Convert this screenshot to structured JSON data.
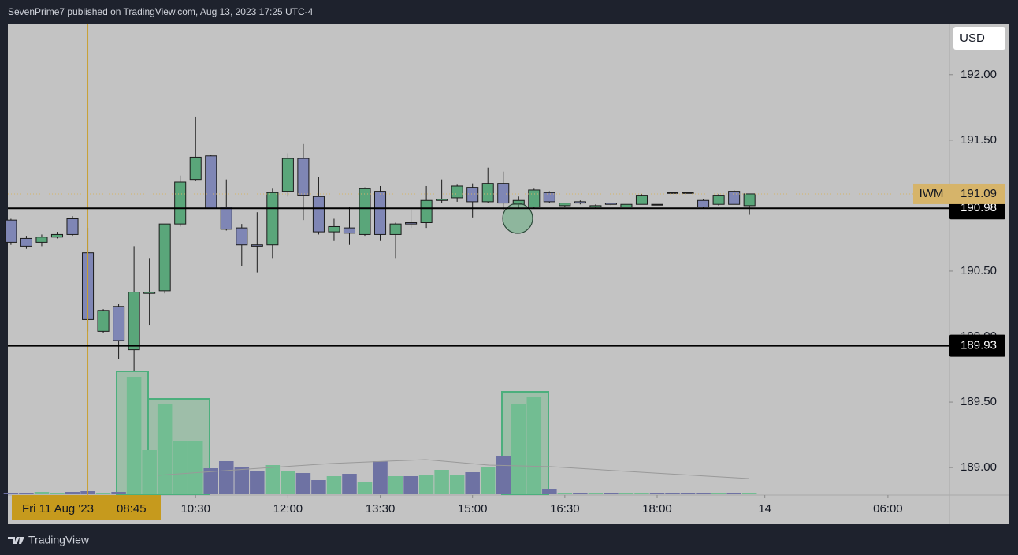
{
  "chart_data": {
    "type": "candlestick",
    "header": "SevenPrime7 published on TradingView.com, Aug 13, 2023 17:25 UTC-4",
    "brand": "TradingView",
    "currency": "USD",
    "symbol": "IWM",
    "last_price": 191.09,
    "x": [
      0,
      1,
      2,
      3,
      4,
      5,
      6,
      7,
      8,
      9,
      10,
      11,
      12,
      13,
      14,
      15,
      16,
      17,
      18,
      19,
      20,
      21,
      22,
      23,
      24,
      25,
      26,
      27,
      28,
      29,
      30,
      31,
      32,
      33,
      34,
      35,
      36,
      37,
      38,
      39,
      40,
      41,
      42,
      43,
      44,
      45,
      46,
      47,
      48
    ],
    "open": [
      190.89,
      190.75,
      190.72,
      190.76,
      190.9,
      190.64,
      190.04,
      190.23,
      189.9,
      190.33,
      190.35,
      190.86,
      191.2,
      191.38,
      190.99,
      190.83,
      190.7,
      190.7,
      191.11,
      191.36,
      191.07,
      190.8,
      190.83,
      190.78,
      191.11,
      190.78,
      190.87,
      190.87,
      191.04,
      191.06,
      191.14,
      191.03,
      191.17,
      191.01,
      190.99,
      191.1,
      191.0,
      191.03,
      190.99,
      191.02,
      190.99,
      191.01,
      191.01,
      191.1,
      191.1,
      191.04,
      191.01,
      191.11,
      191.0
    ],
    "high": [
      190.9,
      190.77,
      190.78,
      190.8,
      190.92,
      190.83,
      190.21,
      190.25,
      190.69,
      190.6,
      190.86,
      191.23,
      191.68,
      191.39,
      191.2,
      190.86,
      190.95,
      191.13,
      191.4,
      191.47,
      191.22,
      190.9,
      190.99,
      191.14,
      191.15,
      190.87,
      190.97,
      191.15,
      191.2,
      191.16,
      191.17,
      191.29,
      191.26,
      191.07,
      191.13,
      191.11,
      191.02,
      191.04,
      191.01,
      191.02,
      191.01,
      191.09,
      191.01,
      191.1,
      191.1,
      191.05,
      191.09,
      191.12,
      191.09
    ],
    "low": [
      190.7,
      190.67,
      190.69,
      190.75,
      190.77,
      190.04,
      190.03,
      189.83,
      189.74,
      190.09,
      190.33,
      190.84,
      191.19,
      190.98,
      190.81,
      190.54,
      190.49,
      190.6,
      191.07,
      190.89,
      190.78,
      190.73,
      190.7,
      190.77,
      190.73,
      190.6,
      190.83,
      190.83,
      191.02,
      191.03,
      190.91,
      191.02,
      190.97,
      190.98,
      190.98,
      191.02,
      190.99,
      191.01,
      190.98,
      191.0,
      190.99,
      191.01,
      191.01,
      191.1,
      191.1,
      190.98,
      191.0,
      191.01,
      190.93
    ],
    "close": [
      190.72,
      190.69,
      190.76,
      190.78,
      190.78,
      190.13,
      190.2,
      189.97,
      190.34,
      190.34,
      190.86,
      191.18,
      191.37,
      190.98,
      190.82,
      190.7,
      190.69,
      191.1,
      191.36,
      191.08,
      190.8,
      190.84,
      190.79,
      191.13,
      190.78,
      190.86,
      190.86,
      191.04,
      191.05,
      191.15,
      191.03,
      191.17,
      191.02,
      191.04,
      191.12,
      191.03,
      191.02,
      191.02,
      191.0,
      191.01,
      191.01,
      191.08,
      191.01,
      191.1,
      191.1,
      190.99,
      191.08,
      191.01,
      191.09
    ],
    "volume": [
      2,
      2,
      3,
      2,
      3,
      4,
      2,
      3,
      149,
      56,
      114,
      68,
      68,
      33,
      42,
      34,
      30,
      37,
      30,
      27,
      18,
      23,
      26,
      16,
      42,
      23,
      23,
      25,
      31,
      24,
      28,
      35,
      48,
      115,
      123,
      7,
      2,
      2,
      2,
      2,
      2,
      2,
      2,
      2,
      2,
      2,
      2,
      2,
      2
    ],
    "vlim": [
      0,
      200
    ],
    "up_color": "#5aa67a",
    "down_color": "#7f86b5",
    "up_volume_color": "#72bd92",
    "down_volume_color": "#6e72a3",
    "xlim": [
      -0.2,
      61
    ],
    "xticks": [
      {
        "value": 12,
        "label": "10:30"
      },
      {
        "value": 18,
        "label": "12:00"
      },
      {
        "value": 24,
        "label": "13:30"
      },
      {
        "value": 30,
        "label": "15:00"
      },
      {
        "value": 36,
        "label": "16:30"
      },
      {
        "value": 42,
        "label": "18:00"
      },
      {
        "value": 49,
        "label": "14"
      },
      {
        "value": 57,
        "label": "06:00"
      }
    ],
    "ylim": [
      188.79,
      192.39
    ],
    "yticks": [
      {
        "value": 189,
        "label": "189.00"
      },
      {
        "value": 189.5,
        "label": "189.50"
      },
      {
        "value": 190,
        "label": "190.00"
      },
      {
        "value": 190.5,
        "label": "190.50"
      },
      {
        "value": 191.5,
        "label": "191.50"
      },
      {
        "value": 192,
        "label": "192.00"
      }
    ],
    "hlines": [
      190.98,
      189.93
    ],
    "crosshair": {
      "x": 5,
      "date": "Fri 11 Aug '23",
      "time": "08:45"
    }
  }
}
